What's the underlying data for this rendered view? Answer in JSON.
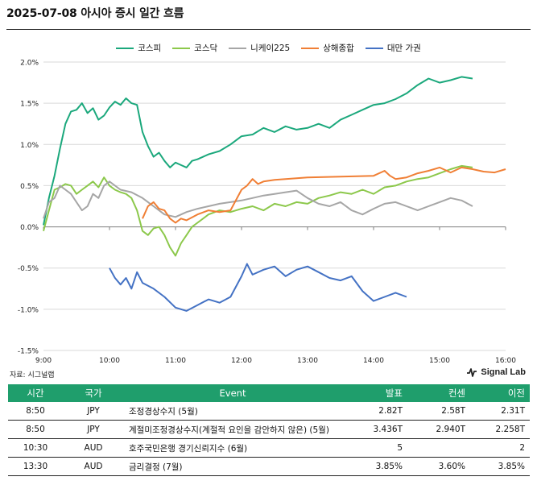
{
  "header": {
    "title": "2025-07-08 아시아 증시 일간 흐름"
  },
  "footer": {
    "source": "자료: 시그널랩",
    "brand": "Signal Lab"
  },
  "colors": {
    "grid": "#d9d9d9",
    "axis": "#7f7f7f",
    "table_header": "#1f9e6c"
  },
  "chart_data": {
    "type": "line",
    "title": "",
    "xlabel": "",
    "ylabel": "",
    "xlim": [
      "9:00",
      "16:00"
    ],
    "ylim": [
      -1.5,
      2.0
    ],
    "y_ticks": [
      "2.0%",
      "1.5%",
      "1.0%",
      "0.5%",
      "0.0%",
      "-0.5%",
      "-1.0%",
      "-1.5%"
    ],
    "x_ticks": [
      "9:00",
      "10:00",
      "11:00",
      "12:00",
      "13:00",
      "14:00",
      "15:00",
      "16:00"
    ],
    "grid": "horizontal",
    "legend_position": "top",
    "series": [
      {
        "name": "코스피",
        "color": "#1ba87c",
        "x": [
          "9:00",
          "9:05",
          "9:10",
          "9:15",
          "9:20",
          "9:25",
          "9:30",
          "9:35",
          "9:40",
          "9:45",
          "9:50",
          "9:55",
          "10:00",
          "10:05",
          "10:10",
          "10:15",
          "10:20",
          "10:25",
          "10:30",
          "10:35",
          "10:40",
          "10:45",
          "10:50",
          "10:55",
          "11:00",
          "11:05",
          "11:10",
          "11:15",
          "11:20",
          "11:30",
          "11:40",
          "11:50",
          "12:00",
          "12:10",
          "12:20",
          "12:30",
          "12:40",
          "12:50",
          "13:00",
          "13:10",
          "13:20",
          "13:30",
          "13:40",
          "13:50",
          "14:00",
          "14:10",
          "14:20",
          "14:30",
          "14:40",
          "14:50",
          "15:00",
          "15:10",
          "15:20",
          "15:30"
        ],
        "values": [
          0.02,
          0.35,
          0.62,
          0.95,
          1.25,
          1.4,
          1.42,
          1.5,
          1.38,
          1.44,
          1.3,
          1.35,
          1.45,
          1.52,
          1.48,
          1.56,
          1.5,
          1.48,
          1.15,
          0.98,
          0.85,
          0.9,
          0.8,
          0.72,
          0.78,
          0.75,
          0.72,
          0.8,
          0.82,
          0.88,
          0.92,
          1.0,
          1.1,
          1.12,
          1.2,
          1.15,
          1.22,
          1.18,
          1.2,
          1.25,
          1.2,
          1.3,
          1.36,
          1.42,
          1.48,
          1.5,
          1.55,
          1.62,
          1.72,
          1.8,
          1.75,
          1.78,
          1.82,
          1.8
        ]
      },
      {
        "name": "코스닥",
        "color": "#8cc84b",
        "x": [
          "9:00",
          "9:05",
          "9:10",
          "9:15",
          "9:20",
          "9:25",
          "9:30",
          "9:35",
          "9:40",
          "9:45",
          "9:50",
          "9:55",
          "10:00",
          "10:05",
          "10:10",
          "10:15",
          "10:20",
          "10:25",
          "10:30",
          "10:35",
          "10:40",
          "10:45",
          "10:50",
          "10:55",
          "11:00",
          "11:05",
          "11:10",
          "11:15",
          "11:20",
          "11:30",
          "11:40",
          "11:50",
          "12:00",
          "12:10",
          "12:20",
          "12:30",
          "12:40",
          "12:50",
          "13:00",
          "13:10",
          "13:20",
          "13:30",
          "13:40",
          "13:50",
          "14:00",
          "14:10",
          "14:20",
          "14:30",
          "14:40",
          "14:50",
          "15:00",
          "15:10",
          "15:20",
          "15:30"
        ],
        "values": [
          -0.05,
          0.2,
          0.45,
          0.48,
          0.52,
          0.5,
          0.4,
          0.45,
          0.5,
          0.55,
          0.48,
          0.6,
          0.5,
          0.45,
          0.42,
          0.4,
          0.35,
          0.2,
          -0.05,
          -0.1,
          -0.02,
          0.0,
          -0.1,
          -0.25,
          -0.35,
          -0.2,
          -0.1,
          0.0,
          0.05,
          0.15,
          0.2,
          0.18,
          0.22,
          0.25,
          0.2,
          0.28,
          0.25,
          0.3,
          0.28,
          0.35,
          0.38,
          0.42,
          0.4,
          0.45,
          0.4,
          0.48,
          0.5,
          0.55,
          0.58,
          0.6,
          0.65,
          0.7,
          0.74,
          0.72
        ]
      },
      {
        "name": "니케이225",
        "color": "#a6a6a6",
        "x": [
          "9:00",
          "9:05",
          "9:10",
          "9:15",
          "9:20",
          "9:25",
          "9:30",
          "9:35",
          "9:40",
          "9:45",
          "9:50",
          "9:55",
          "10:00",
          "10:10",
          "10:20",
          "10:30",
          "10:40",
          "10:50",
          "11:00",
          "11:10",
          "11:20",
          "11:30",
          "11:40",
          "11:50",
          "12:00",
          "12:10",
          "12:20",
          "12:30",
          "12:40",
          "12:50",
          "13:00",
          "13:10",
          "13:20",
          "13:30",
          "13:40",
          "13:50",
          "14:00",
          "14:10",
          "14:20",
          "14:30",
          "14:40",
          "14:50",
          "15:00",
          "15:10",
          "15:20",
          "15:30"
        ],
        "values": [
          0.1,
          0.3,
          0.35,
          0.5,
          0.45,
          0.4,
          0.3,
          0.2,
          0.25,
          0.4,
          0.35,
          0.5,
          0.55,
          0.45,
          0.42,
          0.35,
          0.25,
          0.15,
          0.12,
          0.18,
          0.22,
          0.25,
          0.28,
          0.3,
          0.32,
          0.35,
          0.38,
          0.4,
          0.42,
          0.44,
          0.35,
          0.28,
          0.25,
          0.3,
          0.2,
          0.15,
          0.22,
          0.28,
          0.3,
          0.25,
          0.2,
          0.25,
          0.3,
          0.35,
          0.32,
          0.25
        ]
      },
      {
        "name": "상해종합",
        "color": "#f07f35",
        "x": [
          "10:30",
          "10:35",
          "10:40",
          "10:45",
          "10:50",
          "10:55",
          "11:00",
          "11:05",
          "11:10",
          "11:20",
          "11:30",
          "11:40",
          "11:50",
          "12:00",
          "12:05",
          "12:10",
          "12:15",
          "12:20",
          "12:30",
          "12:40",
          "12:50",
          "13:00",
          "13:30",
          "14:00",
          "14:10",
          "14:15",
          "14:20",
          "14:30",
          "14:40",
          "14:50",
          "15:00",
          "15:10",
          "15:20",
          "15:30",
          "15:40",
          "15:50",
          "16:00"
        ],
        "values": [
          0.1,
          0.25,
          0.3,
          0.22,
          0.2,
          0.1,
          0.05,
          0.1,
          0.08,
          0.15,
          0.2,
          0.18,
          0.2,
          0.45,
          0.5,
          0.58,
          0.52,
          0.55,
          0.57,
          0.58,
          0.59,
          0.6,
          0.61,
          0.62,
          0.68,
          0.62,
          0.58,
          0.6,
          0.65,
          0.68,
          0.72,
          0.66,
          0.72,
          0.7,
          0.67,
          0.66,
          0.7
        ]
      },
      {
        "name": "대만 가권",
        "color": "#4472c4",
        "x": [
          "10:00",
          "10:05",
          "10:10",
          "10:15",
          "10:20",
          "10:25",
          "10:30",
          "10:40",
          "10:50",
          "11:00",
          "11:10",
          "11:20",
          "11:30",
          "11:40",
          "11:50",
          "12:00",
          "12:05",
          "12:10",
          "12:20",
          "12:30",
          "12:40",
          "12:50",
          "13:00",
          "13:10",
          "13:20",
          "13:30",
          "13:40",
          "13:50",
          "14:00",
          "14:10",
          "14:20",
          "14:30"
        ],
        "values": [
          -0.5,
          -0.62,
          -0.7,
          -0.62,
          -0.75,
          -0.55,
          -0.68,
          -0.75,
          -0.85,
          -0.98,
          -1.02,
          -0.95,
          -0.88,
          -0.92,
          -0.85,
          -0.6,
          -0.45,
          -0.58,
          -0.52,
          -0.48,
          -0.6,
          -0.52,
          -0.48,
          -0.55,
          -0.62,
          -0.65,
          -0.6,
          -0.78,
          -0.9,
          -0.85,
          -0.8,
          -0.85
        ]
      }
    ]
  },
  "table": {
    "headers": [
      "시간",
      "국가",
      "Event",
      "발표",
      "컨센",
      "이전"
    ],
    "rows": [
      [
        "8:50",
        "JPY",
        "조정경상수지 (5월)",
        "2.82T",
        "2.58T",
        "2.31T"
      ],
      [
        "8:50",
        "JPY",
        "계절미조정경상수지(계절적 요인을 감안하지 않은) (5월)",
        "3.436T",
        "2.940T",
        "2.258T"
      ],
      [
        "10:30",
        "AUD",
        "호주국민은행 경기신뢰지수 (6월)",
        "5",
        "",
        "2"
      ],
      [
        "13:30",
        "AUD",
        "금리결정 (7월)",
        "3.85%",
        "3.60%",
        "3.85%"
      ]
    ]
  }
}
